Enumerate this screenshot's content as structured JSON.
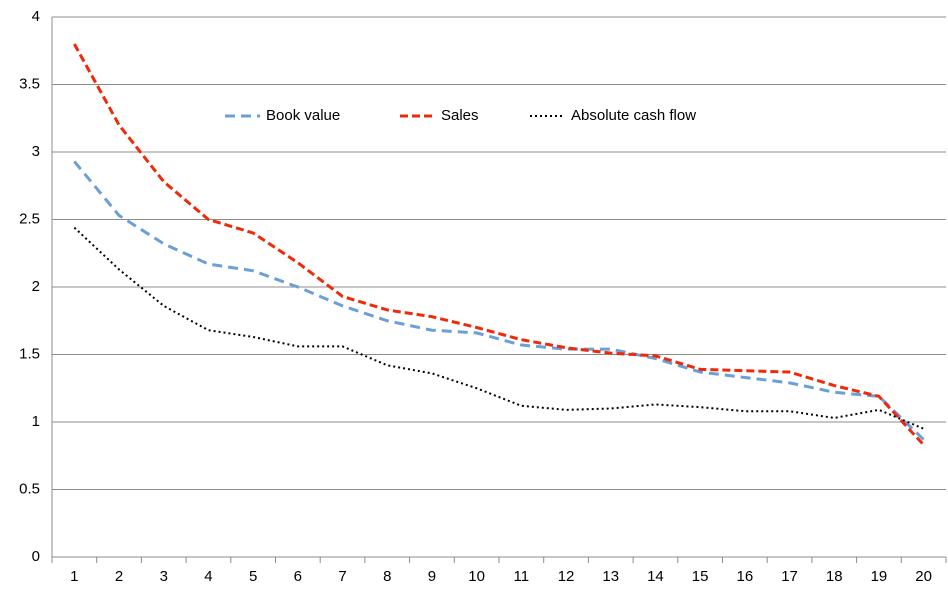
{
  "chart_data": {
    "type": "line",
    "categories": [
      "1",
      "2",
      "3",
      "4",
      "5",
      "6",
      "7",
      "8",
      "9",
      "10",
      "11",
      "12",
      "13",
      "14",
      "15",
      "16",
      "17",
      "18",
      "19",
      "20"
    ],
    "series": [
      {
        "name": "Book value",
        "color": "#6a9fd8",
        "style": "dashed",
        "values": [
          2.93,
          2.53,
          2.32,
          2.17,
          2.12,
          2.0,
          1.86,
          1.75,
          1.68,
          1.66,
          1.57,
          1.54,
          1.54,
          1.47,
          1.37,
          1.33,
          1.29,
          1.22,
          1.19,
          0.87
        ]
      },
      {
        "name": "Sales",
        "color": "#ee2a0b",
        "style": "dashed-bold",
        "values": [
          3.8,
          3.2,
          2.78,
          2.5,
          2.4,
          2.18,
          1.93,
          1.83,
          1.78,
          1.7,
          1.61,
          1.55,
          1.51,
          1.49,
          1.39,
          1.38,
          1.37,
          1.27,
          1.19,
          0.83
        ]
      },
      {
        "name": "Absolute cash flow",
        "color": "#000000",
        "style": "dotted",
        "values": [
          2.44,
          2.13,
          1.86,
          1.68,
          1.63,
          1.56,
          1.56,
          1.42,
          1.36,
          1.25,
          1.12,
          1.09,
          1.1,
          1.13,
          1.11,
          1.08,
          1.08,
          1.03,
          1.09,
          0.95
        ]
      }
    ],
    "ylim": [
      0,
      4
    ],
    "yticks": [
      0,
      0.5,
      1,
      1.5,
      2,
      2.5,
      3,
      3.5,
      4
    ],
    "grid": true,
    "legend": "top"
  }
}
